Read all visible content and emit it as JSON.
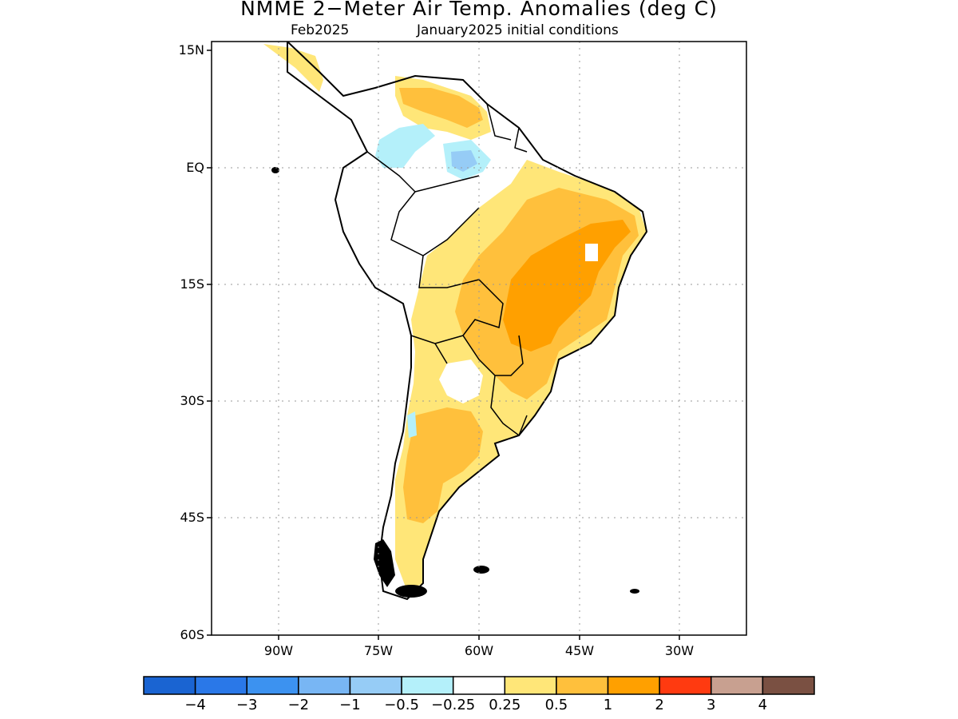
{
  "title": "NMME 2−Meter Air Temp. Anomalies (deg C)",
  "subtitle_left": "Feb2025",
  "subtitle_right": "January2025 initial conditions",
  "lat_labels": [
    "15N",
    "EQ",
    "15S",
    "30S",
    "45S",
    "60S"
  ],
  "lon_labels": [
    "90W",
    "75W",
    "60W",
    "45W",
    "30W"
  ],
  "colorbar": {
    "colors": [
      "#1a64d2",
      "#2a78e8",
      "#3c92f0",
      "#78b6f4",
      "#96ccf6",
      "#b4f0fa",
      "#ffffff",
      "#ffe678",
      "#ffc03c",
      "#ffa000",
      "#ff3a10",
      "#c8a090",
      "#7a5042"
    ],
    "labels": [
      "−4",
      "−3",
      "−2",
      "−1",
      "−0.5",
      "−0.25",
      "0.25",
      "0.5",
      "1",
      "2",
      "3",
      "4"
    ]
  },
  "map": {
    "lat_range": [
      -60,
      15
    ],
    "lon_range": [
      -100,
      -20
    ],
    "grid": "dotted",
    "shading": {
      "light_yellow": "#ffe678",
      "light_orange": "#ffc03c",
      "orange": "#ffa000",
      "light_blue": "#b4f0fa",
      "blue": "#96ccf6"
    }
  }
}
